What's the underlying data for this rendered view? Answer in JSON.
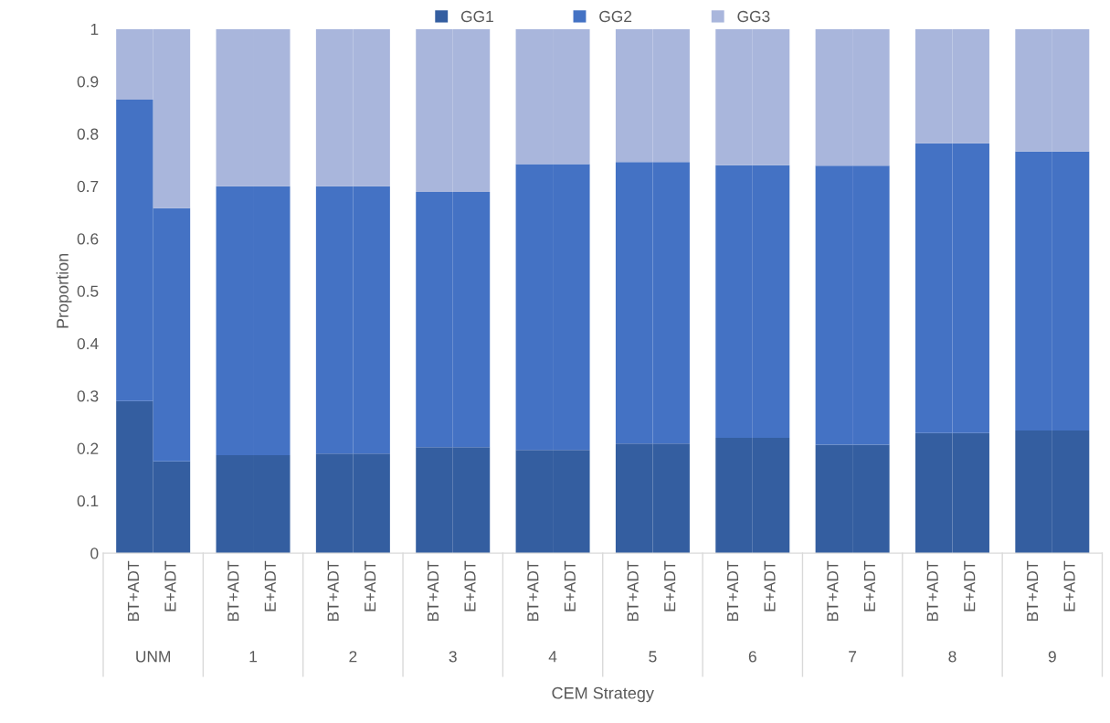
{
  "chart_data": {
    "type": "bar",
    "stacked": true,
    "xlabel": "CEM Strategy",
    "ylabel": "Proportion",
    "categories": [
      "BT+ADT",
      "E+ADT",
      "BT+ADT",
      "E+ADT",
      "BT+ADT",
      "E+ADT",
      "BT+ADT",
      "E+ADT",
      "BT+ADT",
      "E+ADT",
      "BT+ADT",
      "E+ADT",
      "BT+ADT",
      "E+ADT",
      "BT+ADT",
      "E+ADT",
      "BT+ADT",
      "E+ADT",
      "BT+ADT",
      "E+ADT"
    ],
    "annotations": [
      "UNM",
      "1",
      "2",
      "3",
      "4",
      "5",
      "6",
      "7",
      "8",
      "9"
    ],
    "series": [
      {
        "name": "GG1",
        "color": "#345ea0",
        "values": [
          0.29,
          0.175,
          0.187,
          0.187,
          0.19,
          0.19,
          0.202,
          0.202,
          0.197,
          0.197,
          0.209,
          0.209,
          0.22,
          0.22,
          0.207,
          0.207,
          0.229,
          0.229,
          0.234,
          0.234
        ]
      },
      {
        "name": "GG2",
        "color": "#4472c4",
        "values": [
          0.575,
          0.483,
          0.513,
          0.513,
          0.51,
          0.51,
          0.487,
          0.487,
          0.545,
          0.545,
          0.537,
          0.537,
          0.52,
          0.52,
          0.532,
          0.532,
          0.553,
          0.553,
          0.532,
          0.532
        ]
      },
      {
        "name": "GG3",
        "color": "#a9b6dc",
        "values": [
          0.135,
          0.342,
          0.3,
          0.3,
          0.3,
          0.3,
          0.311,
          0.311,
          0.258,
          0.258,
          0.254,
          0.254,
          0.26,
          0.26,
          0.261,
          0.261,
          0.218,
          0.218,
          0.234,
          0.234
        ]
      }
    ],
    "ylim": [
      0,
      1
    ],
    "yticks": [
      0,
      0.1,
      0.2,
      0.3,
      0.4,
      0.5,
      0.6,
      0.7,
      0.8,
      0.9,
      1
    ],
    "grid": false,
    "legend": "top"
  }
}
